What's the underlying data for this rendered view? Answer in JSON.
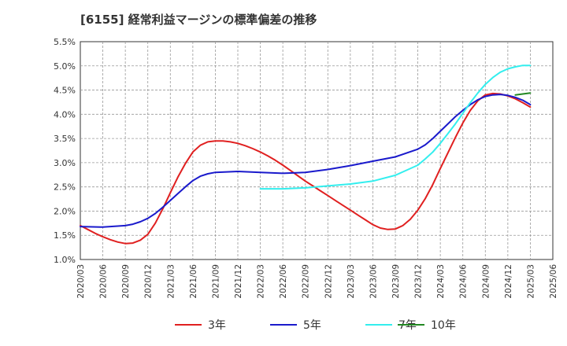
{
  "title": "[6155]  経常利益マージンの標準偏差の推移",
  "chart_data": {
    "type": "line",
    "title": "[6155]  経常利益マージンの標準偏差の推移",
    "xlabel": "",
    "ylabel": "",
    "ylim": [
      1.0,
      5.5
    ],
    "y_ticks": [
      "1.0%",
      "1.5%",
      "2.0%",
      "2.5%",
      "3.0%",
      "3.5%",
      "4.0%",
      "4.5%",
      "5.0%",
      "5.5%"
    ],
    "x_ticks": [
      "2020/03",
      "2020/06",
      "2020/09",
      "2020/12",
      "2021/03",
      "2021/06",
      "2021/09",
      "2021/12",
      "2022/03",
      "2022/06",
      "2022/09",
      "2022/12",
      "2023/03",
      "2023/06",
      "2023/09",
      "2023/12",
      "2024/03",
      "2024/06",
      "2024/09",
      "2024/12",
      "2025/03",
      "2025/06"
    ],
    "grid": true,
    "legend_position": "bottom",
    "series": [
      {
        "name": "3年",
        "color": "#e02020",
        "points": [
          [
            "2020/03",
            1.7
          ],
          [
            "2020/04",
            1.62
          ],
          [
            "2020/05",
            1.54
          ],
          [
            "2020/06",
            1.47
          ],
          [
            "2020/07",
            1.41
          ],
          [
            "2020/08",
            1.36
          ],
          [
            "2020/09",
            1.33
          ],
          [
            "2020/10",
            1.34
          ],
          [
            "2020/11",
            1.4
          ],
          [
            "2020/12",
            1.52
          ],
          [
            "2021/01",
            1.75
          ],
          [
            "2021/02",
            2.05
          ],
          [
            "2021/03",
            2.38
          ],
          [
            "2021/04",
            2.7
          ],
          [
            "2021/05",
            2.98
          ],
          [
            "2021/06",
            3.22
          ],
          [
            "2021/07",
            3.36
          ],
          [
            "2021/08",
            3.43
          ],
          [
            "2021/09",
            3.45
          ],
          [
            "2021/10",
            3.45
          ],
          [
            "2021/11",
            3.43
          ],
          [
            "2021/12",
            3.4
          ],
          [
            "2022/01",
            3.35
          ],
          [
            "2022/02",
            3.29
          ],
          [
            "2022/03",
            3.22
          ],
          [
            "2022/04",
            3.14
          ],
          [
            "2022/05",
            3.05
          ],
          [
            "2022/06",
            2.95
          ],
          [
            "2022/07",
            2.84
          ],
          [
            "2022/08",
            2.73
          ],
          [
            "2022/09",
            2.62
          ],
          [
            "2022/10",
            2.52
          ],
          [
            "2022/11",
            2.42
          ],
          [
            "2022/12",
            2.32
          ],
          [
            "2023/01",
            2.22
          ],
          [
            "2023/02",
            2.12
          ],
          [
            "2023/03",
            2.02
          ],
          [
            "2023/04",
            1.92
          ],
          [
            "2023/05",
            1.82
          ],
          [
            "2023/06",
            1.72
          ],
          [
            "2023/07",
            1.65
          ],
          [
            "2023/08",
            1.62
          ],
          [
            "2023/09",
            1.63
          ],
          [
            "2023/10",
            1.7
          ],
          [
            "2023/11",
            1.83
          ],
          [
            "2023/12",
            2.02
          ],
          [
            "2024/01",
            2.26
          ],
          [
            "2024/02",
            2.55
          ],
          [
            "2024/03",
            2.88
          ],
          [
            "2024/04",
            3.2
          ],
          [
            "2024/05",
            3.52
          ],
          [
            "2024/06",
            3.82
          ],
          [
            "2024/07",
            4.08
          ],
          [
            "2024/08",
            4.28
          ],
          [
            "2024/09",
            4.4
          ],
          [
            "2024/10",
            4.43
          ],
          [
            "2024/11",
            4.42
          ],
          [
            "2024/12",
            4.38
          ],
          [
            "2025/01",
            4.32
          ],
          [
            "2025/02",
            4.24
          ],
          [
            "2025/03",
            4.15
          ]
        ]
      },
      {
        "name": "5年",
        "color": "#1a1acc",
        "points": [
          [
            "2020/03",
            1.68
          ],
          [
            "2020/06",
            1.67
          ],
          [
            "2020/09",
            1.7
          ],
          [
            "2020/10",
            1.73
          ],
          [
            "2020/11",
            1.78
          ],
          [
            "2020/12",
            1.85
          ],
          [
            "2021/01",
            1.95
          ],
          [
            "2021/02",
            2.08
          ],
          [
            "2021/03",
            2.22
          ],
          [
            "2021/04",
            2.36
          ],
          [
            "2021/05",
            2.5
          ],
          [
            "2021/06",
            2.63
          ],
          [
            "2021/07",
            2.72
          ],
          [
            "2021/08",
            2.77
          ],
          [
            "2021/09",
            2.8
          ],
          [
            "2021/12",
            2.82
          ],
          [
            "2022/03",
            2.8
          ],
          [
            "2022/06",
            2.78
          ],
          [
            "2022/09",
            2.8
          ],
          [
            "2022/12",
            2.86
          ],
          [
            "2023/03",
            2.94
          ],
          [
            "2023/06",
            3.03
          ],
          [
            "2023/09",
            3.12
          ],
          [
            "2023/12",
            3.28
          ],
          [
            "2024/01",
            3.37
          ],
          [
            "2024/02",
            3.5
          ],
          [
            "2024/03",
            3.65
          ],
          [
            "2024/04",
            3.8
          ],
          [
            "2024/05",
            3.95
          ],
          [
            "2024/06",
            4.08
          ],
          [
            "2024/07",
            4.2
          ],
          [
            "2024/08",
            4.3
          ],
          [
            "2024/09",
            4.37
          ],
          [
            "2024/10",
            4.4
          ],
          [
            "2024/11",
            4.41
          ],
          [
            "2024/12",
            4.39
          ],
          [
            "2025/01",
            4.35
          ],
          [
            "2025/02",
            4.29
          ],
          [
            "2025/03",
            4.2
          ]
        ]
      },
      {
        "name": "7年",
        "color": "#33eeee",
        "points": [
          [
            "2022/03",
            2.46
          ],
          [
            "2022/06",
            2.46
          ],
          [
            "2022/09",
            2.48
          ],
          [
            "2022/12",
            2.52
          ],
          [
            "2023/03",
            2.56
          ],
          [
            "2023/06",
            2.62
          ],
          [
            "2023/09",
            2.74
          ],
          [
            "2023/12",
            2.95
          ],
          [
            "2024/01",
            3.08
          ],
          [
            "2024/02",
            3.22
          ],
          [
            "2024/03",
            3.4
          ],
          [
            "2024/04",
            3.6
          ],
          [
            "2024/05",
            3.8
          ],
          [
            "2024/06",
            4.02
          ],
          [
            "2024/07",
            4.24
          ],
          [
            "2024/08",
            4.44
          ],
          [
            "2024/09",
            4.62
          ],
          [
            "2024/10",
            4.76
          ],
          [
            "2024/11",
            4.87
          ],
          [
            "2024/12",
            4.94
          ],
          [
            "2025/01",
            4.98
          ],
          [
            "2025/02",
            5.01
          ],
          [
            "2025/03",
            5.01
          ]
        ]
      },
      {
        "name": "10年",
        "color": "#228822",
        "points": [
          [
            "2025/01",
            4.4
          ],
          [
            "2025/02",
            4.42
          ],
          [
            "2025/03",
            4.44
          ]
        ]
      }
    ]
  }
}
